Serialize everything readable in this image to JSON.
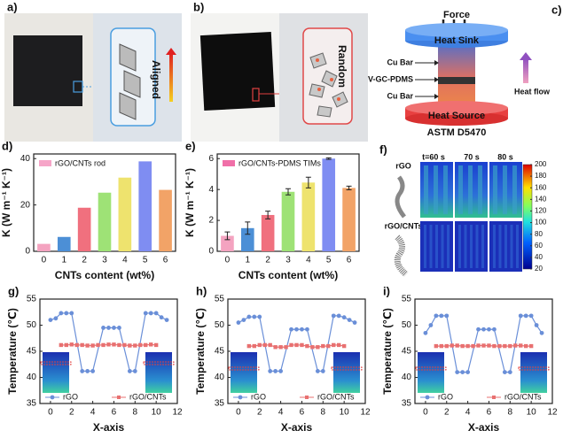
{
  "panel_a": {
    "label": "a)",
    "text": "Aligned"
  },
  "panel_b": {
    "label": "b)",
    "text": "Random"
  },
  "panel_c": {
    "label": "c)",
    "force": "Force",
    "heat_sink": "Heat Sink",
    "cu_bar_top": "Cu Bar",
    "sample": "V-GC-PDMS",
    "cu_bar_bottom": "Cu Bar",
    "heat_flow": "Heat flow",
    "heat_source": "Heat Source",
    "standard": "ASTM D5470"
  },
  "panel_f": {
    "label": "f)",
    "times": [
      "t=60 s",
      "70 s",
      "80 s"
    ],
    "rows": [
      "rGO",
      "rGO/CNTs"
    ],
    "colorbar_ticks": [
      20,
      40,
      60,
      80,
      100,
      120,
      140,
      160,
      180,
      200
    ]
  },
  "chart_data": [
    {
      "type": "bar",
      "panel_label": "d)",
      "categories": [
        "0",
        "1",
        "2",
        "3",
        "4",
        "5",
        "6"
      ],
      "series": [
        {
          "name": "rGO/CNTs rod",
          "color": "#f6a5c8",
          "values": [
            3.2,
            6.2,
            18.8,
            25.3,
            31.8,
            38.8,
            26.5
          ]
        }
      ],
      "bar_colors": [
        "#f4a3c0",
        "#4c8fd6",
        "#f0707e",
        "#9ee276",
        "#eee36e",
        "#7f8df2",
        "#f2a367"
      ],
      "ylim": [
        0,
        42
      ],
      "yticks": [
        0,
        20,
        40
      ],
      "x_label": "CNTs content (wt%)",
      "y_label": "K (W m⁻¹ K⁻¹)",
      "legend": "upper left"
    },
    {
      "type": "bar",
      "panel_label": "e)",
      "categories": [
        "0",
        "1",
        "2",
        "3",
        "4",
        "5",
        "6"
      ],
      "series": [
        {
          "name": "rGO/CNTs-PDMS TIMs",
          "color": "#f06fa8",
          "values": [
            1.0,
            1.5,
            2.35,
            3.85,
            4.45,
            6.0,
            4.1
          ],
          "errors": [
            0.25,
            0.4,
            0.25,
            0.2,
            0.35,
            0.05,
            0.12
          ]
        }
      ],
      "bar_colors": [
        "#f4a3c0",
        "#4c8fd6",
        "#f0707e",
        "#9ee276",
        "#eee36e",
        "#7f8df2",
        "#f2a367"
      ],
      "ylim": [
        0,
        6.3
      ],
      "yticks": [
        0,
        2,
        4,
        6
      ],
      "x_label": "CNTs content (wt%)",
      "y_label": "K (W m⁻¹ K⁻¹)",
      "legend": "upper left"
    },
    {
      "type": "line",
      "panel_label": "g)",
      "series": [
        {
          "name": "rGO",
          "color": "#6a8fd8",
          "x": [
            0,
            0.5,
            1,
            1.5,
            2,
            3,
            3.5,
            4,
            5,
            5.5,
            6,
            6.5,
            7.5,
            8,
            9,
            9.5,
            10,
            10.5,
            11
          ],
          "values": [
            51,
            51.3,
            52.3,
            52.3,
            52.3,
            41.2,
            41.2,
            41.2,
            49.5,
            49.5,
            49.5,
            49.5,
            41.2,
            41.2,
            52.3,
            52.3,
            52.3,
            51.5,
            51
          ]
        },
        {
          "name": "rGO/CNTs",
          "color": "#e87070",
          "x": [
            1,
            1.5,
            2,
            2.5,
            3,
            3.5,
            4,
            4.5,
            5,
            5.5,
            6,
            6.5,
            7,
            7.5,
            8,
            8.5,
            9,
            9.5,
            10
          ],
          "values": [
            46.2,
            46.2,
            46.3,
            46.2,
            46.2,
            46.1,
            46.1,
            46.2,
            46.2,
            46.3,
            46.3,
            46.2,
            46.2,
            46.1,
            46.1,
            46.2,
            46.2,
            46.3,
            46.2
          ]
        }
      ],
      "xlim": [
        -1,
        12
      ],
      "xticks": [
        0,
        2,
        4,
        6,
        8,
        10,
        12
      ],
      "ylim": [
        35,
        55
      ],
      "yticks": [
        35,
        40,
        45,
        50,
        55
      ],
      "x_label": "X-axis",
      "y_label": "Temperature (℃)",
      "legend": "lower"
    },
    {
      "type": "line",
      "panel_label": "h)",
      "series": [
        {
          "name": "rGO",
          "color": "#6a8fd8",
          "x": [
            0,
            0.5,
            1,
            1.5,
            2,
            3,
            3.5,
            4,
            5,
            5.5,
            6,
            6.5,
            7.5,
            8,
            9,
            9.5,
            10,
            10.5,
            11
          ],
          "values": [
            50.5,
            51,
            51.6,
            51.6,
            51.6,
            41.2,
            41.2,
            41.2,
            49.2,
            49.2,
            49.2,
            49.2,
            41.2,
            41.2,
            51.8,
            51.8,
            51.5,
            51,
            50.5
          ]
        },
        {
          "name": "rGO/CNTs",
          "color": "#e87070",
          "x": [
            1,
            1.5,
            2,
            2.5,
            3,
            3.5,
            4,
            4.5,
            5,
            5.5,
            6,
            6.5,
            7,
            7.5,
            8,
            8.5,
            9,
            9.5,
            10
          ],
          "values": [
            46,
            46,
            46.2,
            46.2,
            46.2,
            45.8,
            45.8,
            45.8,
            46.2,
            46.2,
            46.2,
            46,
            45.8,
            45.8,
            46,
            46,
            46.2,
            46.2,
            46
          ]
        }
      ],
      "xlim": [
        -1,
        12
      ],
      "xticks": [
        0,
        2,
        4,
        6,
        8,
        10,
        12
      ],
      "ylim": [
        35,
        55
      ],
      "yticks": [
        35,
        40,
        45,
        50,
        55
      ],
      "x_label": "X-axis",
      "y_label": "Temperature (℃)",
      "legend": "lower"
    },
    {
      "type": "line",
      "panel_label": "i)",
      "series": [
        {
          "name": "rGO",
          "color": "#6a8fd8",
          "x": [
            0,
            0.5,
            1,
            1.5,
            2,
            3,
            3.5,
            4,
            5,
            5.5,
            6,
            6.5,
            7.5,
            8,
            9,
            9.5,
            10,
            10.5,
            11
          ],
          "values": [
            48.5,
            50,
            51.8,
            51.8,
            51.8,
            41,
            41,
            41,
            49.2,
            49.2,
            49.2,
            49.2,
            41,
            41,
            51.8,
            51.8,
            51.8,
            50,
            48.5
          ]
        },
        {
          "name": "rGO/CNTs",
          "color": "#e87070",
          "x": [
            1,
            1.5,
            2,
            2.5,
            3,
            3.5,
            4,
            4.5,
            5,
            5.5,
            6,
            6.5,
            7,
            7.5,
            8,
            8.5,
            9,
            9.5,
            10
          ],
          "values": [
            46,
            46,
            46,
            46.1,
            46.1,
            46,
            46,
            46,
            46.1,
            46.1,
            46.1,
            46,
            46,
            46,
            46,
            46.1,
            46.1,
            46,
            46
          ]
        }
      ],
      "xlim": [
        -1,
        12
      ],
      "xticks": [
        0,
        2,
        4,
        6,
        8,
        10,
        12
      ],
      "ylim": [
        35,
        55
      ],
      "yticks": [
        35,
        40,
        45,
        50,
        55
      ],
      "x_label": "X-axis",
      "y_label": "Temperature (℃)",
      "legend": "lower"
    }
  ]
}
